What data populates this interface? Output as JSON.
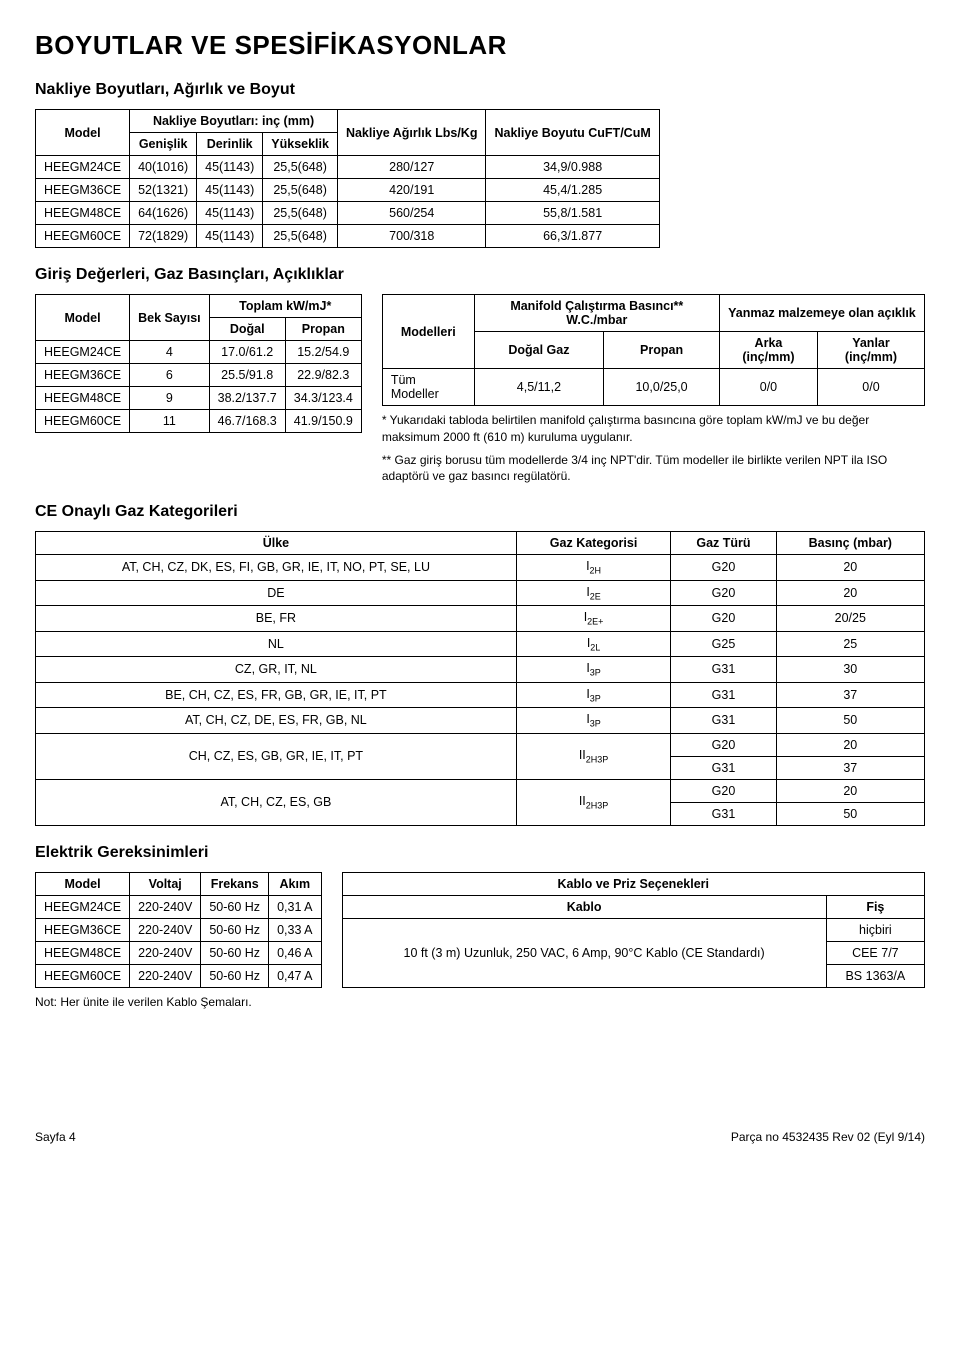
{
  "page_title": "BOYUTLAR VE SPESİFİKASYONLAR",
  "section1": {
    "title": "Nakliye Boyutları, Ağırlık ve Boyut",
    "headers": {
      "model": "Model",
      "group": "Nakliye Boyutları: inç (mm)",
      "width": "Genişlik",
      "depth": "Derinlik",
      "height": "Yükseklik",
      "weight": "Nakliye Ağırlık Lbs/Kg",
      "size": "Nakliye Boyutu CuFT/CuM"
    },
    "rows": [
      {
        "m": "HEEGM24CE",
        "w": "40(1016)",
        "d": "45(1143)",
        "h": "25,5(648)",
        "wt": "280/127",
        "sz": "34,9/0.988"
      },
      {
        "m": "HEEGM36CE",
        "w": "52(1321)",
        "d": "45(1143)",
        "h": "25,5(648)",
        "wt": "420/191",
        "sz": "45,4/1.285"
      },
      {
        "m": "HEEGM48CE",
        "w": "64(1626)",
        "d": "45(1143)",
        "h": "25,5(648)",
        "wt": "560/254",
        "sz": "55,8/1.581"
      },
      {
        "m": "HEEGM60CE",
        "w": "72(1829)",
        "d": "45(1143)",
        "h": "25,5(648)",
        "wt": "700/318",
        "sz": "66,3/1.877"
      }
    ]
  },
  "section2": {
    "title": "Giriş Değerleri, Gaz Basınçları, Açıklıklar",
    "left": {
      "headers": {
        "model": "Model",
        "bek": "Bek Sayısı",
        "group": "Toplam kW/mJ*",
        "nat": "Doğal",
        "prop": "Propan"
      },
      "rows": [
        {
          "m": "HEEGM24CE",
          "b": "4",
          "n": "17.0/61.2",
          "p": "15.2/54.9"
        },
        {
          "m": "HEEGM36CE",
          "b": "6",
          "n": "25.5/91.8",
          "p": "22.9/82.3"
        },
        {
          "m": "HEEGM48CE",
          "b": "9",
          "n": "38.2/137.7",
          "p": "34.3/123.4"
        },
        {
          "m": "HEEGM60CE",
          "b": "11",
          "n": "46.7/168.3",
          "p": "41.9/150.9"
        }
      ]
    },
    "right": {
      "headers": {
        "models": "Modelleri",
        "manif": "Manifold Çalıştırma Basıncı** W.C./mbar",
        "yanmaz": "Yanmaz malzemeye olan açıklık",
        "nat": "Doğal Gaz",
        "prop": "Propan",
        "rear": "Arka (inç/mm)",
        "side": "Yanlar (inç/mm)"
      },
      "row": {
        "m": "Tüm Modeller",
        "n": "4,5/11,2",
        "p": "10,0/25,0",
        "r": "0/0",
        "s": "0/0"
      },
      "note1": "*  Yukarıdaki tabloda belirtilen manifold çalıştırma basıncına göre toplam kW/mJ ve bu değer maksimum 2000 ft (610 m) kuruluma uygulanır.",
      "note2": "** Gaz giriş borusu tüm modellerde 3/4 inç NPT'dir. Tüm modeller ile birlikte verilen NPT ila ISO adaptörü ve gaz basıncı regülatörü."
    }
  },
  "section3": {
    "title": "CE Onaylı Gaz Kategorileri",
    "headers": {
      "country": "Ülke",
      "cat": "Gaz Kategorisi",
      "type": "Gaz Türü",
      "press": "Basınç (mbar)"
    },
    "rows": [
      {
        "c": "AT, CH, CZ, DK, ES, FI, GB, GR, IE, IT, NO, PT, SE, LU",
        "k": "I",
        "ks": "2H",
        "t": "G20",
        "p": "20"
      },
      {
        "c": "DE",
        "k": "I",
        "ks": "2E",
        "t": "G20",
        "p": "20"
      },
      {
        "c": "BE, FR",
        "k": "I",
        "ks": "2E+",
        "t": "G20",
        "p": "20/25"
      },
      {
        "c": "NL",
        "k": "I",
        "ks": "2L",
        "t": "G25",
        "p": "25"
      },
      {
        "c": "CZ, GR, IT, NL",
        "k": "I",
        "ks": "3P",
        "t": "G31",
        "p": "30"
      },
      {
        "c": "BE, CH, CZ, ES, FR, GB, GR, IE, IT, PT",
        "k": "I",
        "ks": "3P",
        "t": "G31",
        "p": "37"
      },
      {
        "c": "AT, CH, CZ, DE, ES, FR, GB, NL",
        "k": "I",
        "ks": "3P",
        "t": "G31",
        "p": "50"
      }
    ],
    "rows2": [
      {
        "c": "CH, CZ, ES, GB, GR, IE, IT, PT",
        "k": "II",
        "ks": "2H3P",
        "t1": "G20",
        "p1": "20",
        "t2": "G31",
        "p2": "37"
      },
      {
        "c": "AT, CH, CZ, ES, GB",
        "k": "II",
        "ks": "2H3P",
        "t1": "G20",
        "p1": "20",
        "t2": "G31",
        "p2": "50"
      }
    ]
  },
  "section4": {
    "title": "Elektrik Gereksinimleri",
    "left": {
      "headers": {
        "model": "Model",
        "volt": "Voltaj",
        "freq": "Frekans",
        "cur": "Akım"
      },
      "rows": [
        {
          "m": "HEEGM24CE",
          "v": "220-240V",
          "f": "50-60 Hz",
          "a": "0,31 A"
        },
        {
          "m": "HEEGM36CE",
          "v": "220-240V",
          "f": "50-60 Hz",
          "a": "0,33 A"
        },
        {
          "m": "HEEGM48CE",
          "v": "220-240V",
          "f": "50-60 Hz",
          "a": "0,46 A"
        },
        {
          "m": "HEEGM60CE",
          "v": "220-240V",
          "f": "50-60 Hz",
          "a": "0,47 A"
        }
      ]
    },
    "right": {
      "header": "Kablo ve Priz Seçenekleri",
      "cable": "Kablo",
      "plug": "Fiş",
      "cable_val": "10 ft (3 m) Uzunluk, 250 VAC, 6 Amp, 90°C Kablo (CE Standardı)",
      "plugs": [
        "hiçbiri",
        "CEE 7/7",
        "BS 1363/A"
      ]
    },
    "note": "Not: Her ünite ile verilen Kablo Şemaları."
  },
  "footer": {
    "left": "Sayfa 4",
    "right": "Parça no 4532435 Rev 02 (Eyl 9/14)"
  }
}
